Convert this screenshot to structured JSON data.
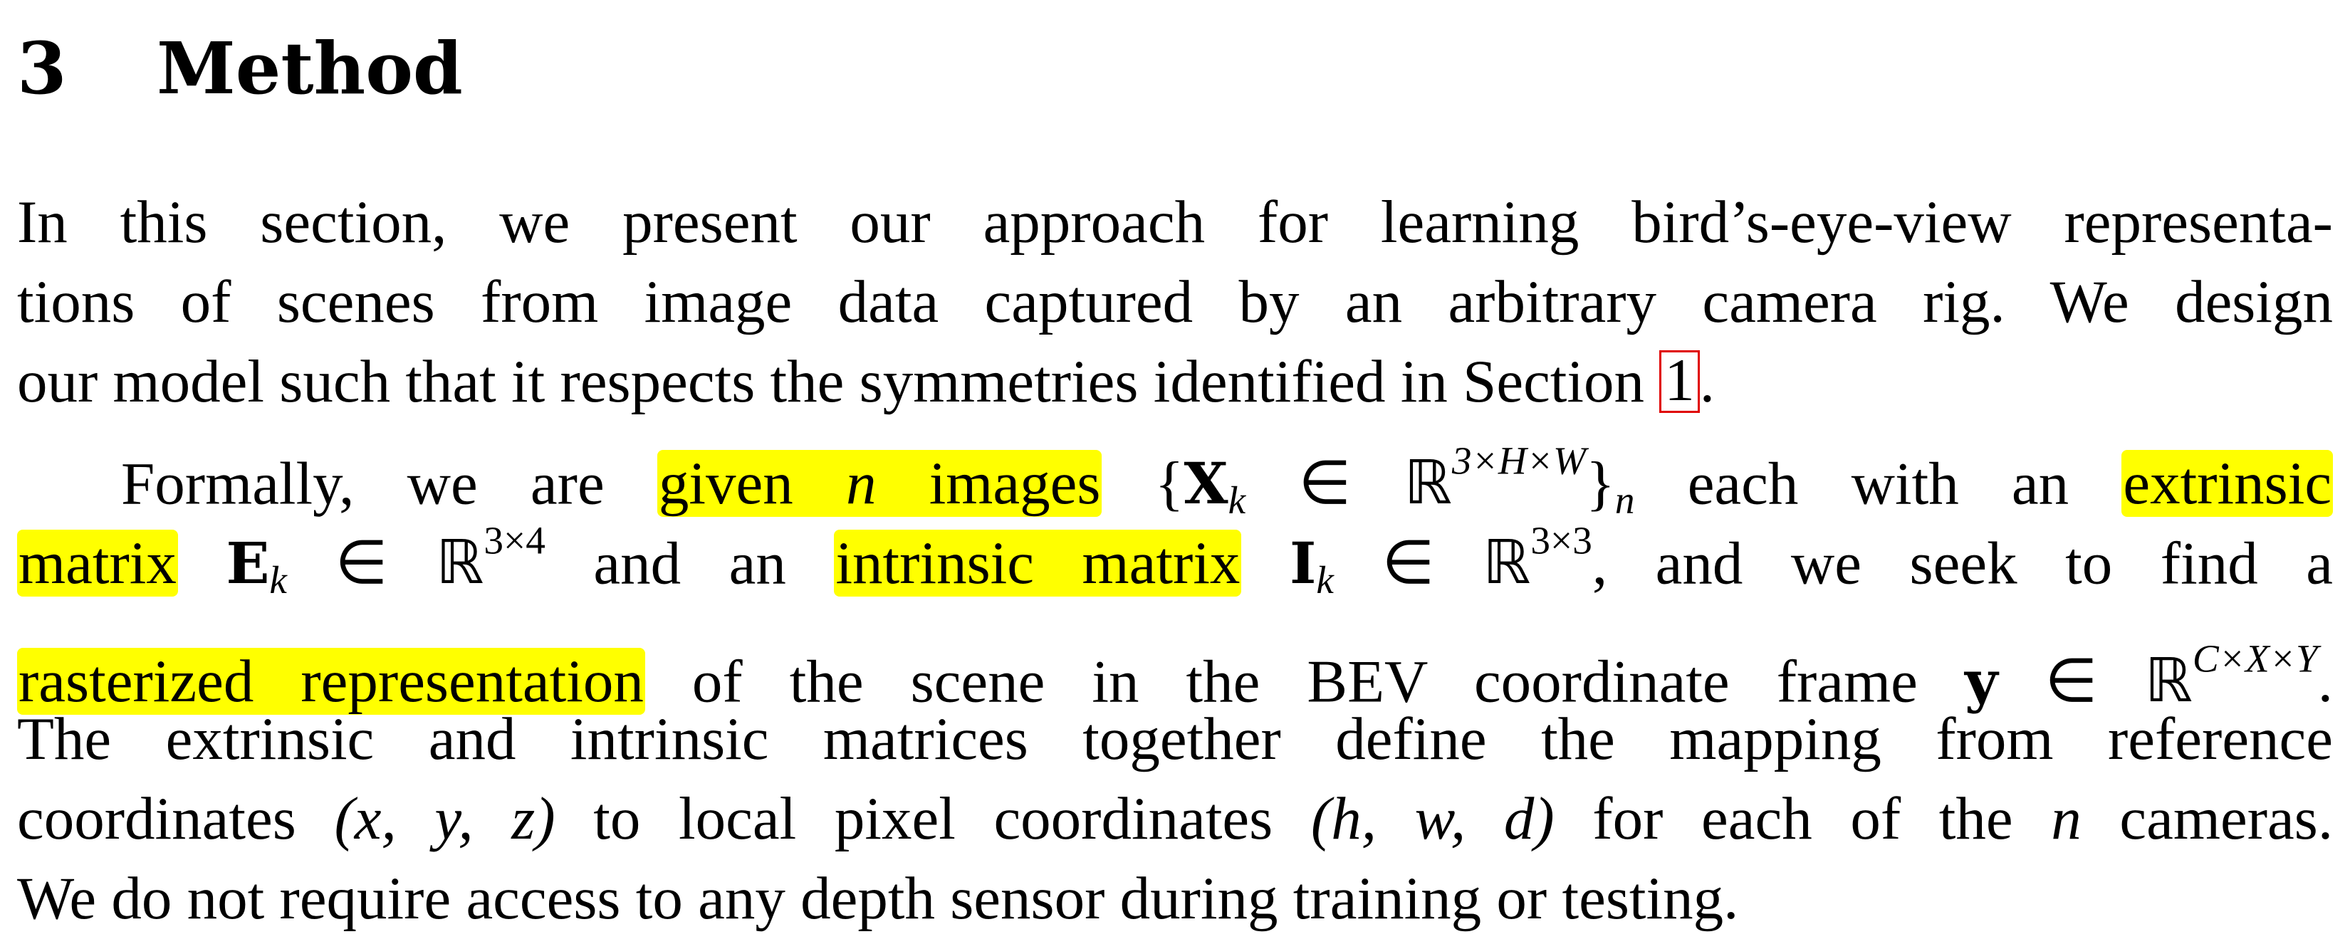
{
  "section": {
    "number": "3",
    "title": "Method"
  },
  "paragraph1": {
    "l1": "In this section, we present our approach for learning bird’s-eye-view representa-",
    "l2": "tions of scenes from image data captured by an arbitrary camera rig. We design",
    "l3_pre": "our model such that it respects the symmetries identified in Section",
    "l3_ref": "1",
    "l3_post": "."
  },
  "paragraph2": {
    "l4_pre": "Formally, we are",
    "hl_given": "given",
    "var_n": "n",
    "hl_images": "images",
    "set_open": "{",
    "X": "X",
    "k": "k",
    "elem": "∈",
    "R": "ℝ",
    "dims_img": "3×H×W",
    "set_close": "}",
    "n_sub": "n",
    "l4_mid": "each with an",
    "hl_extrinsic": "extrinsic",
    "hl_matrix1": "matrix",
    "E": "E",
    "dims_ext": "3×4",
    "l5_mid1": "and an",
    "hl_intrinsic": "intrinsic matrix",
    "I": "I",
    "dims_int": "3×3",
    "l5_end": ", and we seek to find a",
    "hl_raster": "rasterized representation",
    "l6_mid": "of the scene in the BEV coordinate frame",
    "y": "y",
    "dims_bev": "C×X×Y",
    "l6_end": ".",
    "l7": "The extrinsic and intrinsic matrices together define the mapping from reference",
    "l8_pre": "coordinates",
    "coords_ref": "(x, y, z)",
    "l8_mid": "to local pixel coordinates",
    "coords_pix": "(h, w, d)",
    "l8_mid2": "for each of the",
    "l8_n": "n",
    "l8_end": "cameras.",
    "l9": "We do not require access to any depth sensor during training or testing."
  }
}
